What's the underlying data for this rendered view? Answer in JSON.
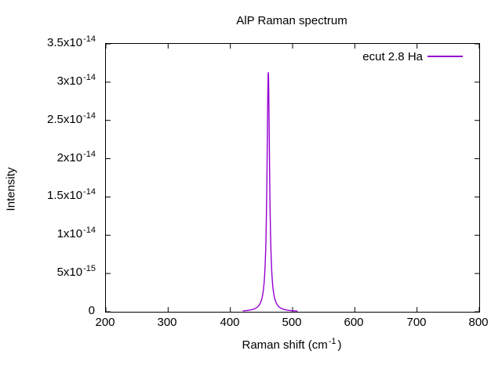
{
  "title": "AlP Raman spectrum",
  "yaxis": {
    "title": "Intensity",
    "ticks": [
      {
        "base": "3.5x10",
        "exp": "-14"
      },
      {
        "base": "3x10",
        "exp": "-14"
      },
      {
        "base": "2.5x10",
        "exp": "-14"
      },
      {
        "base": "2x10",
        "exp": "-14"
      },
      {
        "base": "1.5x10",
        "exp": "-14"
      },
      {
        "base": "1x10",
        "exp": "-14"
      },
      {
        "base": "5x10",
        "exp": "-15"
      },
      {
        "base": "0",
        "exp": ""
      }
    ]
  },
  "xaxis": {
    "title_prefix": "Raman shift (cm",
    "title_sup": "-1",
    "title_suffix": ")",
    "ticks": [
      "200",
      "300",
      "400",
      "500",
      "600",
      "700",
      "800"
    ]
  },
  "legend": {
    "label": "ecut 2.8 Ha",
    "line_color": "#9400D3",
    "position": "top-right"
  },
  "chart_data": {
    "type": "line",
    "title": "AlP Raman spectrum",
    "xlabel": "Raman shift (cm^-1)",
    "ylabel": "Intensity",
    "xlim": [
      200,
      800
    ],
    "ylim": [
      0,
      3.5e-14
    ],
    "x_ticks": [
      200,
      300,
      400,
      500,
      600,
      700,
      800
    ],
    "y_ticks": [
      0,
      5e-15,
      1e-14,
      1.5e-14,
      2e-14,
      2.5e-14,
      3e-14,
      3.5e-14
    ],
    "grid": false,
    "legend_position": "top-right",
    "tick_style": "inward-mirrored",
    "series": [
      {
        "name": "ecut 2.8 Ha",
        "color": "#9400D3",
        "line_width": 1.4,
        "shape": "lorentzian",
        "peak": {
          "center": 461,
          "height": 3.13e-14,
          "hwhm": 2.5
        },
        "draw_range": [
          420,
          508
        ],
        "baseline": 0
      }
    ]
  }
}
